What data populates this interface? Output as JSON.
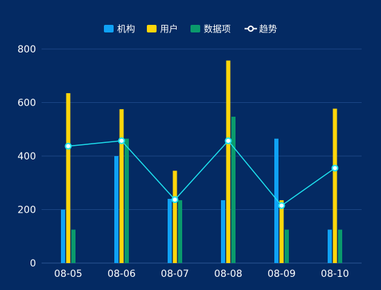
{
  "chart_data": {
    "type": "bar",
    "categories": [
      "08-05",
      "08-06",
      "08-07",
      "08-08",
      "08-09",
      "08-10"
    ],
    "series": [
      {
        "name": "机构",
        "kind": "bar",
        "color": "#0fa2f5",
        "values": [
          200,
          400,
          240,
          235,
          465,
          125
        ]
      },
      {
        "name": "用户",
        "kind": "bar",
        "color": "#ffd60a",
        "values": [
          635,
          575,
          345,
          757,
          235,
          577
        ]
      },
      {
        "name": "数据项",
        "kind": "bar",
        "color": "#0a9a6c",
        "values": [
          125,
          465,
          235,
          547,
          125,
          125
        ]
      },
      {
        "name": "趋势",
        "kind": "line",
        "color": "#1ee3f0",
        "values": [
          437,
          457,
          237,
          457,
          215,
          355
        ]
      }
    ],
    "ylim": [
      0,
      800
    ],
    "yticks": [
      0,
      200,
      400,
      600,
      800
    ],
    "legend_position": "top-center",
    "grid": true
  }
}
